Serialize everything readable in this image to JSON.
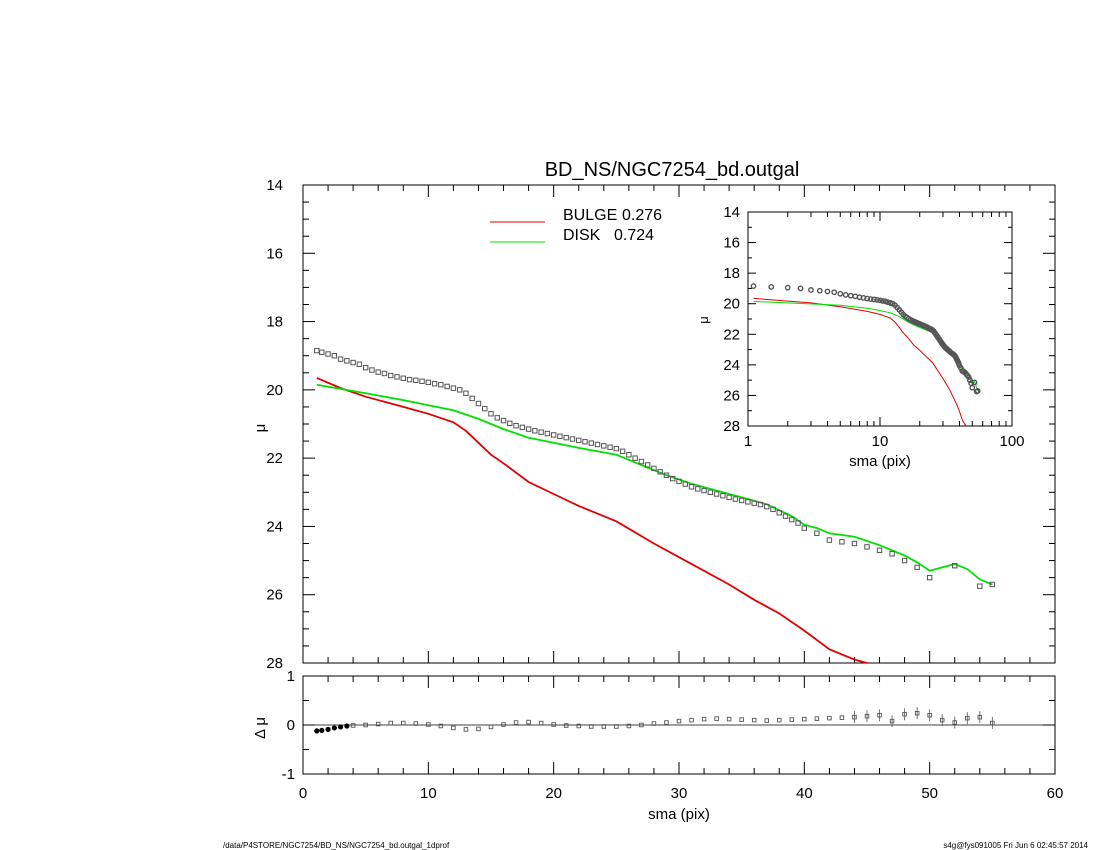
{
  "title": "BD_NS/NGC7254_bd.outgal",
  "footer": {
    "left": "/data/P4STORE/NGC7254/BD_NS/NGC7254_bd.outgal_1dprof",
    "right": "s4g@fys091005  Fri Jun  6 02:45:57 2014"
  },
  "colors": {
    "bulge": "#e00000",
    "disk": "#00e000",
    "data": "#555555",
    "axes": "#000000"
  },
  "chart_data": [
    {
      "type": "line",
      "name": "main-profile",
      "xlabel": "",
      "ylabel": "μ",
      "xlim": [
        0,
        60
      ],
      "ylim": [
        28,
        14
      ],
      "y_inverted": true,
      "yticks": [
        "14",
        "16",
        "18",
        "20",
        "22",
        "24",
        "26",
        "28"
      ],
      "legend": [
        {
          "name": "BULGE",
          "value": "0.276",
          "color": "#e00000"
        },
        {
          "name": "DISK",
          "value": "0.724",
          "color": "#00e000"
        }
      ],
      "legend_placement": "top-center",
      "series": [
        {
          "name": "BULGE",
          "kind": "line",
          "points": [
            [
              1.1,
              19.65
            ],
            [
              3,
              19.95
            ],
            [
              5,
              20.2
            ],
            [
              8,
              20.5
            ],
            [
              10,
              20.7
            ],
            [
              12,
              20.95
            ],
            [
              13,
              21.2
            ],
            [
              14,
              21.55
            ],
            [
              15,
              21.9
            ],
            [
              16,
              22.15
            ],
            [
              18,
              22.7
            ],
            [
              20,
              23.05
            ],
            [
              22,
              23.4
            ],
            [
              25,
              23.85
            ],
            [
              28,
              24.5
            ],
            [
              30,
              24.9
            ],
            [
              32,
              25.3
            ],
            [
              34,
              25.7
            ],
            [
              36,
              26.15
            ],
            [
              38,
              26.55
            ],
            [
              40,
              27.05
            ],
            [
              42,
              27.6
            ],
            [
              44,
              27.9
            ],
            [
              45,
              28.05
            ]
          ]
        },
        {
          "name": "DISK",
          "kind": "line",
          "points": [
            [
              1.1,
              19.85
            ],
            [
              5,
              20.1
            ],
            [
              8,
              20.3
            ],
            [
              10,
              20.45
            ],
            [
              12,
              20.6
            ],
            [
              14,
              20.85
            ],
            [
              16,
              21.15
            ],
            [
              18,
              21.4
            ],
            [
              20,
              21.55
            ],
            [
              22,
              21.7
            ],
            [
              25,
              21.9
            ],
            [
              27,
              22.2
            ],
            [
              29,
              22.5
            ],
            [
              31,
              22.75
            ],
            [
              33,
              22.95
            ],
            [
              35,
              23.15
            ],
            [
              37,
              23.35
            ],
            [
              39,
              23.7
            ],
            [
              40,
              23.95
            ],
            [
              41,
              24.05
            ],
            [
              42,
              24.2
            ],
            [
              44,
              24.3
            ],
            [
              46,
              24.55
            ],
            [
              48,
              24.85
            ],
            [
              49,
              25.05
            ],
            [
              50,
              25.3
            ],
            [
              51,
              25.2
            ],
            [
              52,
              25.1
            ],
            [
              53,
              25.25
            ],
            [
              54,
              25.55
            ],
            [
              55,
              25.7
            ]
          ]
        },
        {
          "name": "data",
          "kind": "points",
          "points": [
            [
              1.1,
              18.85
            ],
            [
              1.5,
              18.9
            ],
            [
              2,
              18.95
            ],
            [
              2.5,
              19.0
            ],
            [
              3,
              19.1
            ],
            [
              3.5,
              19.15
            ],
            [
              4,
              19.2
            ],
            [
              4.5,
              19.25
            ],
            [
              5,
              19.35
            ],
            [
              5.5,
              19.42
            ],
            [
              6,
              19.48
            ],
            [
              6.5,
              19.52
            ],
            [
              7,
              19.58
            ],
            [
              7.5,
              19.62
            ],
            [
              8,
              19.66
            ],
            [
              8.5,
              19.7
            ],
            [
              9,
              19.72
            ],
            [
              9.5,
              19.75
            ],
            [
              10,
              19.78
            ],
            [
              10.5,
              19.82
            ],
            [
              11,
              19.85
            ],
            [
              11.5,
              19.9
            ],
            [
              12,
              19.95
            ],
            [
              12.5,
              20.0
            ],
            [
              13,
              20.1
            ],
            [
              13.5,
              20.25
            ],
            [
              14,
              20.4
            ],
            [
              14.5,
              20.55
            ],
            [
              15,
              20.7
            ],
            [
              15.5,
              20.82
            ],
            [
              16,
              20.9
            ],
            [
              16.5,
              20.98
            ],
            [
              17,
              21.05
            ],
            [
              17.5,
              21.1
            ],
            [
              18,
              21.15
            ],
            [
              18.5,
              21.2
            ],
            [
              19,
              21.24
            ],
            [
              19.5,
              21.28
            ],
            [
              20,
              21.32
            ],
            [
              20.5,
              21.36
            ],
            [
              21,
              21.4
            ],
            [
              21.5,
              21.44
            ],
            [
              22,
              21.48
            ],
            [
              22.5,
              21.52
            ],
            [
              23,
              21.56
            ],
            [
              23.5,
              21.6
            ],
            [
              24,
              21.64
            ],
            [
              24.5,
              21.68
            ],
            [
              25,
              21.72
            ],
            [
              25.5,
              21.8
            ],
            [
              26,
              21.9
            ],
            [
              26.5,
              22.0
            ],
            [
              27,
              22.1
            ],
            [
              27.5,
              22.2
            ],
            [
              28,
              22.3
            ],
            [
              28.5,
              22.4
            ],
            [
              29,
              22.5
            ],
            [
              29.5,
              22.6
            ],
            [
              30,
              22.68
            ],
            [
              30.5,
              22.76
            ],
            [
              31,
              22.84
            ],
            [
              31.5,
              22.9
            ],
            [
              32,
              22.95
            ],
            [
              32.5,
              23.0
            ],
            [
              33,
              23.05
            ],
            [
              33.5,
              23.1
            ],
            [
              34,
              23.15
            ],
            [
              34.5,
              23.2
            ],
            [
              35,
              23.24
            ],
            [
              35.5,
              23.28
            ],
            [
              36,
              23.32
            ],
            [
              36.5,
              23.36
            ],
            [
              37,
              23.42
            ],
            [
              37.5,
              23.5
            ],
            [
              38,
              23.6
            ],
            [
              38.5,
              23.7
            ],
            [
              39,
              23.8
            ],
            [
              39.5,
              23.9
            ],
            [
              40,
              24.05
            ],
            [
              41,
              24.2
            ],
            [
              42,
              24.4
            ],
            [
              43,
              24.45
            ],
            [
              44,
              24.5
            ],
            [
              45,
              24.6
            ],
            [
              46,
              24.7
            ],
            [
              47,
              24.8
            ],
            [
              48,
              25.0
            ],
            [
              49,
              25.2
            ],
            [
              50,
              25.5
            ],
            [
              52,
              25.15
            ],
            [
              54,
              25.75
            ],
            [
              55,
              25.7
            ]
          ]
        }
      ]
    },
    {
      "type": "line",
      "name": "inset-log-profile",
      "xlabel": "sma (pix)",
      "ylabel": "μ",
      "xscale": "log",
      "xlim": [
        1,
        100
      ],
      "ylim": [
        28,
        14
      ],
      "y_inverted": true,
      "xticks": [
        "1",
        "10",
        "100"
      ],
      "yticks": [
        "14",
        "16",
        "18",
        "20",
        "22",
        "24",
        "26",
        "28"
      ]
    },
    {
      "type": "scatter",
      "name": "residuals",
      "xlabel": "sma (pix)",
      "ylabel": "Δ μ",
      "xlim": [
        0,
        60
      ],
      "ylim": [
        -1,
        1
      ],
      "xticks": [
        "0",
        "10",
        "20",
        "30",
        "40",
        "50",
        "60"
      ],
      "yticks": [
        "1",
        "0",
        "-1"
      ],
      "series": [
        {
          "name": "residual",
          "points": [
            [
              1.1,
              -0.12
            ],
            [
              1.5,
              -0.11
            ],
            [
              2,
              -0.09
            ],
            [
              2.5,
              -0.06
            ],
            [
              3,
              -0.04
            ],
            [
              3.5,
              -0.02
            ],
            [
              4,
              -0.01
            ],
            [
              5,
              0.0
            ],
            [
              6,
              0.02
            ],
            [
              7,
              0.04
            ],
            [
              8,
              0.04
            ],
            [
              9,
              0.03
            ],
            [
              10,
              0.01
            ],
            [
              11,
              -0.02
            ],
            [
              12,
              -0.06
            ],
            [
              13,
              -0.09
            ],
            [
              14,
              -0.08
            ],
            [
              15,
              -0.04
            ],
            [
              16,
              0.01
            ],
            [
              17,
              0.05
            ],
            [
              18,
              0.06
            ],
            [
              19,
              0.04
            ],
            [
              20,
              0.01
            ],
            [
              21,
              -0.01
            ],
            [
              22,
              -0.02
            ],
            [
              23,
              -0.03
            ],
            [
              24,
              -0.03
            ],
            [
              25,
              -0.03
            ],
            [
              26,
              -0.02
            ],
            [
              27,
              0.0
            ],
            [
              28,
              0.03
            ],
            [
              29,
              0.05
            ],
            [
              30,
              0.08
            ],
            [
              31,
              0.1
            ],
            [
              32,
              0.12
            ],
            [
              33,
              0.13
            ],
            [
              34,
              0.12
            ],
            [
              35,
              0.11
            ],
            [
              36,
              0.1
            ],
            [
              37,
              0.09
            ],
            [
              38,
              0.1
            ],
            [
              39,
              0.11
            ],
            [
              40,
              0.12
            ],
            [
              41,
              0.13
            ],
            [
              42,
              0.14
            ],
            [
              43,
              0.15
            ],
            [
              44,
              0.16
            ],
            [
              45,
              0.18
            ],
            [
              46,
              0.2
            ],
            [
              47,
              0.08
            ],
            [
              48,
              0.22
            ],
            [
              49,
              0.24
            ],
            [
              50,
              0.2
            ],
            [
              51,
              0.1
            ],
            [
              52,
              0.05
            ],
            [
              53,
              0.14
            ],
            [
              54,
              0.16
            ],
            [
              55,
              0.04
            ]
          ]
        }
      ]
    }
  ]
}
